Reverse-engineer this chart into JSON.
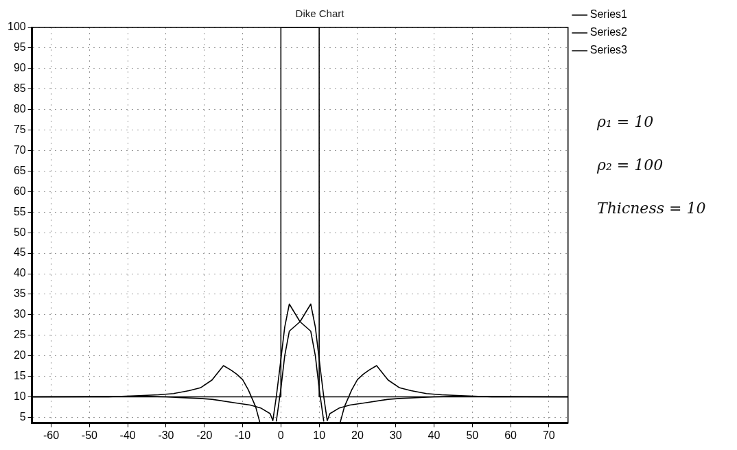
{
  "chart_data": {
    "type": "line",
    "title": "Dike Chart",
    "xlim": [
      -65,
      75
    ],
    "xticks": [
      -60,
      -50,
      -40,
      -30,
      -20,
      -10,
      0,
      10,
      20,
      30,
      40,
      50,
      60,
      70
    ],
    "ylim": [
      3.6,
      100
    ],
    "yticks": [
      5,
      10,
      15,
      20,
      25,
      30,
      35,
      40,
      45,
      50,
      55,
      60,
      65,
      70,
      75,
      80,
      85,
      90,
      95,
      100
    ],
    "grid": true,
    "legend": "top right",
    "marker": "none",
    "line_style": "solid",
    "annotations": [
      "ρ₁ = 10",
      "ρ₂ = 100",
      "Thicness = 10"
    ],
    "series": [
      {
        "name": "Series1",
        "color": "#000000",
        "x": [
          -65,
          0,
          0,
          10,
          10,
          75
        ],
        "values": [
          10,
          10,
          100,
          100,
          10,
          10
        ]
      },
      {
        "name": "Series2",
        "color": "#000000",
        "x": [
          -65,
          -45,
          -37,
          -32,
          -28,
          -24,
          -21,
          -18,
          -15,
          -13,
          -11.5,
          -10,
          -8.5,
          -6.6,
          -5.5,
          -3,
          -1.2,
          0,
          1,
          2.2,
          5,
          7.8,
          9,
          10,
          11.2,
          13,
          15.5,
          16.6,
          18.5,
          20,
          21.5,
          23,
          25,
          28,
          31,
          34,
          38,
          42,
          47,
          55,
          75
        ],
        "values": [
          10,
          10,
          10.3,
          10.5,
          10.8,
          11.5,
          12.2,
          14.1,
          17.6,
          16.5,
          15.5,
          14.2,
          11.7,
          7.6,
          3.8,
          null,
          4,
          12,
          20,
          26,
          28.3,
          26,
          20,
          12,
          4,
          null,
          3.8,
          7.6,
          11.7,
          14.2,
          15.5,
          16.5,
          17.6,
          14.1,
          12.2,
          11.5,
          10.8,
          10.5,
          10.3,
          10,
          10
        ]
      },
      {
        "name": "Series3",
        "color": "#000000",
        "x": [
          -65,
          -35,
          -30,
          -21,
          -18,
          -11.7,
          -8,
          -5.3,
          -2.8,
          -2.1,
          -1.2,
          -0.2,
          1,
          2.2,
          5,
          7.8,
          9,
          10.2,
          11.2,
          12.1,
          12.8,
          15.3,
          18,
          21.7,
          28,
          31,
          40,
          45,
          75
        ],
        "values": [
          10,
          10.1,
          10,
          9.6,
          9.4,
          8.5,
          8,
          7.3,
          5.9,
          4.2,
          10,
          17.6,
          27,
          32.6,
          28.3,
          32.6,
          27,
          17.6,
          10,
          4.2,
          5.9,
          7.3,
          8,
          8.5,
          9.4,
          9.6,
          10,
          10.1,
          10
        ]
      }
    ]
  }
}
